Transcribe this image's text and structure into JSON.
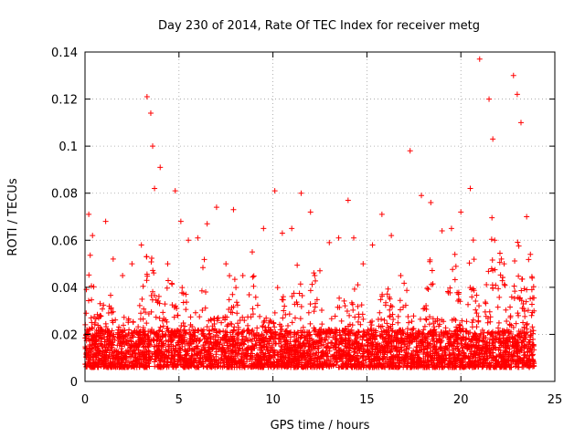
{
  "chart_data": {
    "type": "scatter",
    "title": "Day 230 of 2014, Rate Of TEC Index for receiver metg",
    "xlabel": "GPS time / hours",
    "ylabel": "ROTI / TECUs",
    "xlim": [
      0,
      25
    ],
    "ylim": [
      0,
      0.14
    ],
    "xticks": [
      0,
      5,
      10,
      15,
      20,
      25
    ],
    "xtick_labels": [
      "0",
      "5",
      "10",
      "15",
      "20",
      "25"
    ],
    "yticks": [
      0,
      0.02,
      0.04,
      0.06,
      0.08,
      0.1,
      0.12,
      0.14
    ],
    "ytick_labels": [
      "0",
      "0.02",
      "0.04",
      "0.06",
      "0.08",
      "0.1",
      "0.12",
      "0.14"
    ],
    "grid": true,
    "legend": "none",
    "series": [
      {
        "marker": "plus",
        "color": "#ff0000",
        "x": [
          0.2,
          0.4,
          0.8,
          1.1,
          1.5,
          2.0,
          2.5,
          3.0,
          3.3,
          3.5,
          3.6,
          3.7,
          4.0,
          4.4,
          4.8,
          5.1,
          5.5,
          6.0,
          6.5,
          7.0,
          7.5,
          7.9,
          8.4,
          8.9,
          9.5,
          10.1,
          10.5,
          11.0,
          11.5,
          12.0,
          12.5,
          13.0,
          13.5,
          14.0,
          14.3,
          14.8,
          15.3,
          15.8,
          16.3,
          16.8,
          17.3,
          17.9,
          18.4,
          19.0,
          19.5,
          20.0,
          20.5,
          21.0,
          21.5,
          21.7,
          21.8,
          22.3,
          22.8,
          23.0,
          23.2,
          23.5,
          23.7
        ],
        "y": [
          0.071,
          0.062,
          0.028,
          0.068,
          0.052,
          0.045,
          0.05,
          0.058,
          0.121,
          0.114,
          0.1,
          0.082,
          0.091,
          0.05,
          0.081,
          0.068,
          0.06,
          0.061,
          0.067,
          0.074,
          0.05,
          0.073,
          0.045,
          0.055,
          0.065,
          0.081,
          0.063,
          0.065,
          0.08,
          0.072,
          0.047,
          0.059,
          0.061,
          0.077,
          0.061,
          0.05,
          0.058,
          0.071,
          0.062,
          0.045,
          0.098,
          0.079,
          0.076,
          0.064,
          0.065,
          0.072,
          0.082,
          0.137,
          0.12,
          0.103,
          0.06,
          0.05,
          0.13,
          0.122,
          0.11,
          0.07,
          0.054
        ]
      }
    ]
  }
}
